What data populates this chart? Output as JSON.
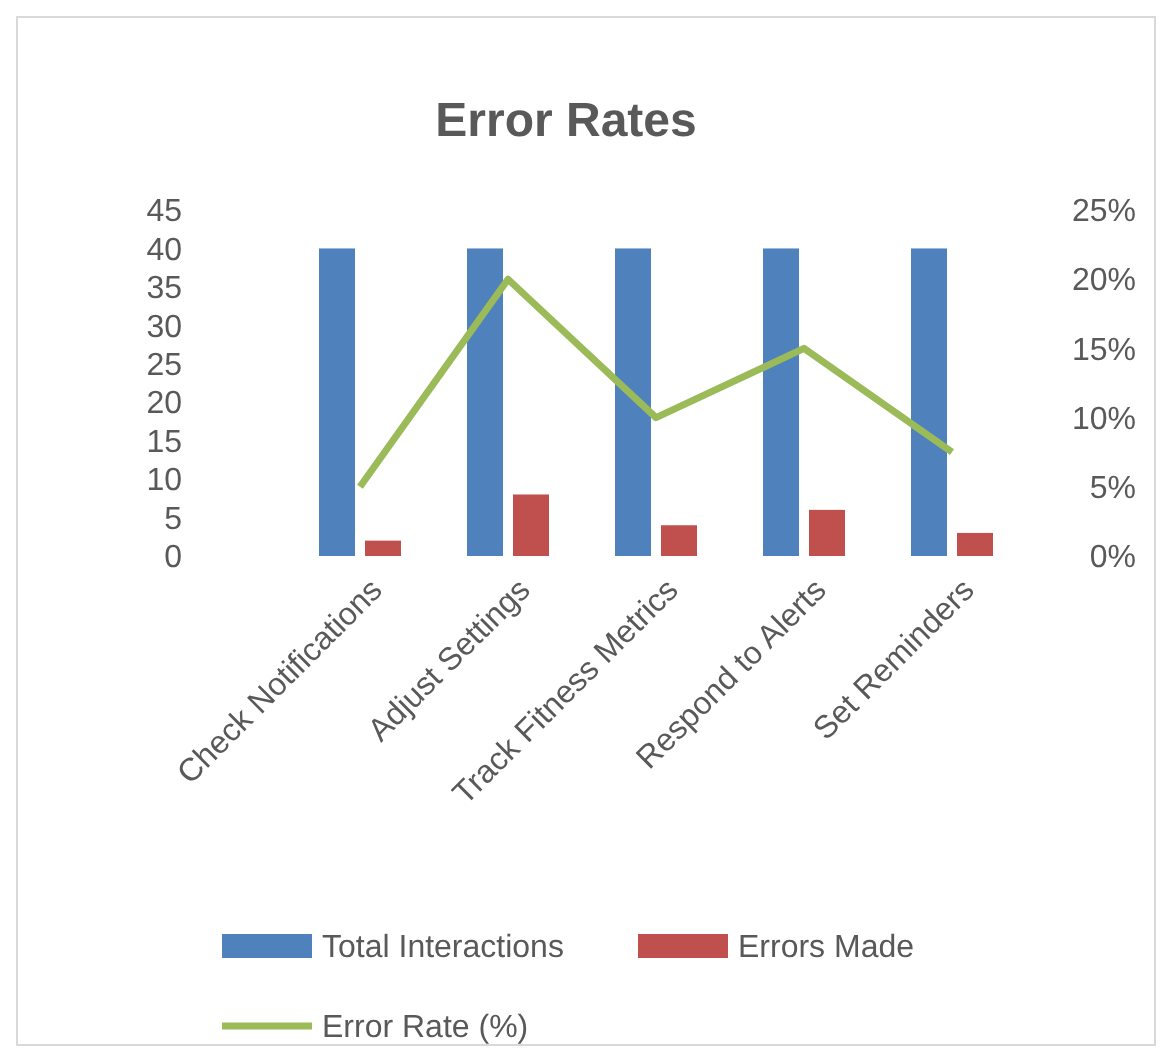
{
  "chart_data": {
    "type": "bar",
    "title": "Error Rates",
    "categories": [
      "Check Notifications",
      "Adjust Settings",
      "Track Fitness Metrics",
      "Respond to Alerts",
      "Set Reminders"
    ],
    "series": [
      {
        "name": "Total Interactions",
        "color": "#4f81bd",
        "values": [
          40,
          40,
          40,
          40,
          40
        ]
      },
      {
        "name": "Errors Made",
        "color": "#c0504d",
        "values": [
          2,
          8,
          4,
          6,
          3
        ]
      },
      {
        "name": "Error Rate (%)",
        "type": "line",
        "axis": "y2",
        "color": "#9bbb59",
        "values": [
          5,
          20,
          10,
          15,
          7.5
        ]
      }
    ],
    "ylim": [
      0,
      45
    ],
    "yticks": [
      0,
      5,
      10,
      15,
      20,
      25,
      30,
      35,
      40,
      45
    ],
    "y2lim": [
      0,
      25
    ],
    "y2ticks": [
      {
        "value": 0,
        "label": "0%"
      },
      {
        "value": 5,
        "label": "5%"
      },
      {
        "value": 10,
        "label": "10%"
      },
      {
        "value": 15,
        "label": "15%"
      },
      {
        "value": 20,
        "label": "20%"
      },
      {
        "value": 25,
        "label": "25%"
      }
    ],
    "grid": false,
    "legend": "bottom",
    "marker": "none",
    "line_style": "solid"
  }
}
